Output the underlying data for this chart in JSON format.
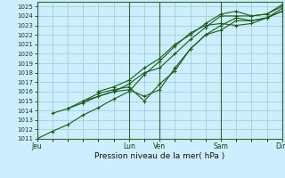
{
  "title": "",
  "xlabel": "Pression niveau de la mer( hPa )",
  "ylim": [
    1011,
    1025.5
  ],
  "xlim": [
    0,
    96
  ],
  "background_color": "#cceeff",
  "grid_color": "#99cccc",
  "line_color": "#1a5c1a",
  "vline_color": "#336633",
  "day_labels": [
    "Jeu",
    "Lun",
    "Ven",
    "Sam",
    "Dim"
  ],
  "day_positions": [
    0,
    36,
    48,
    72,
    96
  ],
  "yticks": [
    1011,
    1012,
    1013,
    1014,
    1015,
    1016,
    1017,
    1018,
    1019,
    1020,
    1021,
    1022,
    1023,
    1024,
    1025
  ],
  "series": [
    {
      "x": [
        0,
        6,
        12,
        18,
        24,
        30,
        36,
        42,
        48,
        54,
        60,
        66,
        72,
        78,
        84,
        90,
        96
      ],
      "y": [
        1011.0,
        1011.8,
        1012.5,
        1013.5,
        1014.3,
        1015.2,
        1016.0,
        1017.8,
        1019.2,
        1020.8,
        1022.2,
        1023.0,
        1023.2,
        1023.0,
        1023.2,
        1023.8,
        1024.5
      ]
    },
    {
      "x": [
        6,
        12,
        18,
        24,
        30,
        36,
        42,
        48,
        54,
        60,
        66,
        72,
        78,
        84,
        90,
        96
      ],
      "y": [
        1013.7,
        1014.2,
        1014.8,
        1015.5,
        1016.0,
        1016.2,
        1015.5,
        1016.2,
        1018.5,
        1020.5,
        1022.0,
        1023.0,
        1023.8,
        1023.5,
        1023.8,
        1024.8
      ]
    },
    {
      "x": [
        12,
        18,
        24,
        30,
        36,
        42,
        48,
        54,
        60,
        66,
        72,
        78,
        84,
        90,
        96
      ],
      "y": [
        1014.2,
        1015.0,
        1015.8,
        1016.2,
        1016.5,
        1015.0,
        1016.8,
        1018.2,
        1020.5,
        1022.0,
        1022.5,
        1023.5,
        1023.5,
        1023.8,
        1024.5
      ]
    },
    {
      "x": [
        18,
        24,
        30,
        36,
        42,
        48,
        54,
        60,
        66,
        72,
        78,
        84,
        90,
        96
      ],
      "y": [
        1015.0,
        1015.5,
        1016.0,
        1016.8,
        1018.0,
        1018.5,
        1020.0,
        1021.5,
        1022.8,
        1024.0,
        1024.0,
        1024.0,
        1024.2,
        1025.0
      ]
    },
    {
      "x": [
        24,
        30,
        36,
        42,
        48,
        54,
        60,
        66,
        72,
        78,
        84,
        90,
        96
      ],
      "y": [
        1016.0,
        1016.5,
        1017.2,
        1018.5,
        1019.5,
        1021.0,
        1022.0,
        1023.2,
        1024.2,
        1024.5,
        1024.0,
        1024.2,
        1025.2
      ]
    }
  ]
}
